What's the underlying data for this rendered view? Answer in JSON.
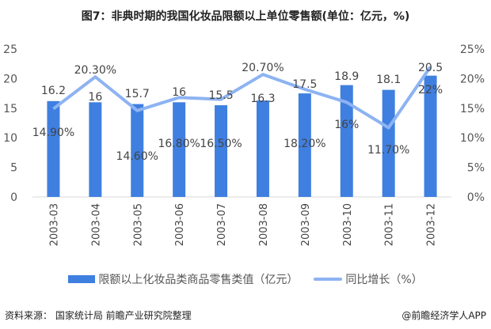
{
  "chart_data": {
    "type": "bar+line",
    "title": "图7：非典时期的我国化妆品限额以上单位零售额(单位：亿元，%)",
    "categories": [
      "2003-03",
      "2003-04",
      "2003-05",
      "2003-06",
      "2003-07",
      "2003-08",
      "2003-09",
      "2003-10",
      "2003-11",
      "2003-12"
    ],
    "series": [
      {
        "name": "限额以上化妆品类商品零售类值（亿元）",
        "type": "bar",
        "axis": "left",
        "color": "#3f7fe0",
        "values": [
          16.2,
          16,
          15.7,
          16,
          15.5,
          16.3,
          17.5,
          18.9,
          18.1,
          20.5
        ],
        "labels": [
          "16.2",
          "16",
          "15.7",
          "16",
          "15.5",
          "16.3",
          "17.5",
          "18.9",
          "18.1",
          "20.5"
        ]
      },
      {
        "name": "同比增长（%）",
        "type": "line",
        "axis": "right",
        "color": "#8db3f2",
        "values": [
          14.9,
          20.3,
          14.6,
          16.8,
          16.5,
          20.7,
          18.2,
          16,
          11.7,
          22
        ],
        "labels": [
          "14.90%",
          "20.30%",
          "14.60%",
          "16.80%",
          "16.50%",
          "20.70%",
          "18.20%",
          "16%",
          "11.70%",
          "22%"
        ]
      }
    ],
    "left_axis": {
      "ylim": [
        0,
        25
      ],
      "ticks": [
        "0",
        "5",
        "10",
        "15",
        "20",
        "25"
      ]
    },
    "right_axis": {
      "ylim": [
        0,
        25
      ],
      "ticks": [
        "0%",
        "5%",
        "10%",
        "15%",
        "20%",
        "25%"
      ]
    },
    "grid": false,
    "legend": "bottom"
  },
  "footer": {
    "source": "资料来源： 国家统计局 前瞻产业研究院整理",
    "brand": "@前瞻经济学人APP"
  }
}
